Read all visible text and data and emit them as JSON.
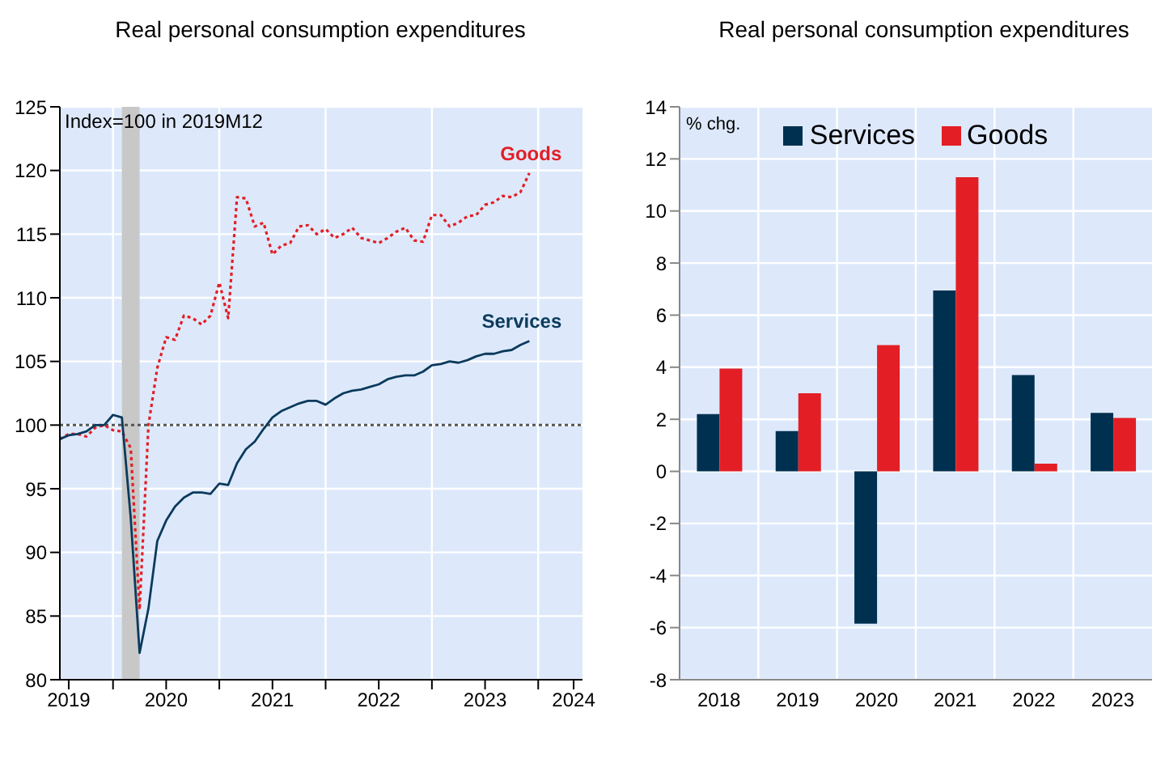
{
  "chart_data": [
    {
      "type": "line",
      "title": "Real personal consumption expenditures",
      "annotations": [
        "Index=100 in 2019M12"
      ],
      "x": [
        "2019-07",
        "2019-08",
        "2019-09",
        "2019-10",
        "2019-11",
        "2019-12",
        "2020-01",
        "2020-02",
        "2020-03",
        "2020-04",
        "2020-05",
        "2020-06",
        "2020-07",
        "2020-08",
        "2020-09",
        "2020-10",
        "2020-11",
        "2020-12",
        "2021-01",
        "2021-02",
        "2021-03",
        "2021-04",
        "2021-05",
        "2021-06",
        "2021-07",
        "2021-08",
        "2021-09",
        "2021-10",
        "2021-11",
        "2021-12",
        "2022-01",
        "2022-02",
        "2022-03",
        "2022-04",
        "2022-05",
        "2022-06",
        "2022-07",
        "2022-08",
        "2022-09",
        "2022-10",
        "2022-11",
        "2022-12",
        "2023-01",
        "2023-02",
        "2023-03",
        "2023-04",
        "2023-05",
        "2023-06",
        "2023-07",
        "2023-08",
        "2023-09",
        "2023-10",
        "2023-11",
        "2023-12"
      ],
      "series": [
        {
          "name": "Goods",
          "color": "#e31e25",
          "line_style": "dotted",
          "values": [
            98.9,
            99.3,
            99.3,
            99.1,
            99.8,
            100.0,
            99.6,
            99.5,
            98.2,
            85.5,
            100.0,
            104.5,
            106.9,
            106.7,
            108.6,
            108.4,
            107.9,
            108.6,
            111.2,
            108.4,
            117.9,
            117.8,
            115.6,
            115.9,
            113.4,
            114.1,
            114.3,
            115.6,
            115.7,
            115.0,
            115.4,
            114.7,
            115.0,
            115.5,
            114.7,
            114.5,
            114.3,
            114.7,
            115.2,
            115.5,
            114.5,
            114.4,
            116.5,
            116.5,
            115.6,
            115.9,
            116.4,
            116.5,
            117.3,
            117.5,
            118.0,
            117.9,
            118.3,
            119.8
          ]
        },
        {
          "name": "Services",
          "color": "#0b3a5c",
          "line_style": "solid",
          "values": [
            98.9,
            99.2,
            99.3,
            99.5,
            100.0,
            100.0,
            100.8,
            100.6,
            92.7,
            82.1,
            85.6,
            90.9,
            92.5,
            93.6,
            94.3,
            94.7,
            94.7,
            94.6,
            95.4,
            95.3,
            97.0,
            98.1,
            98.7,
            99.7,
            100.6,
            101.1,
            101.4,
            101.7,
            101.9,
            101.9,
            101.6,
            102.1,
            102.5,
            102.7,
            102.8,
            103.0,
            103.2,
            103.6,
            103.8,
            103.9,
            103.9,
            104.2,
            104.7,
            104.8,
            105.0,
            104.9,
            105.1,
            105.4,
            105.6,
            105.6,
            105.8,
            105.9,
            106.3,
            106.6
          ]
        }
      ],
      "xlim": [
        "2019-07",
        "2024-06"
      ],
      "xticks": [
        {
          "value": "2019-08",
          "label": "2019"
        },
        {
          "value": "2020-01",
          "label": null
        },
        {
          "value": "2020-07",
          "label": "2020"
        },
        {
          "value": "2021-01",
          "label": null
        },
        {
          "value": "2021-07",
          "label": "2021"
        },
        {
          "value": "2022-01",
          "label": null
        },
        {
          "value": "2022-07",
          "label": "2022"
        },
        {
          "value": "2023-01",
          "label": null
        },
        {
          "value": "2023-07",
          "label": "2023"
        },
        {
          "value": "2024-01",
          "label": null
        },
        {
          "value": "2024-05",
          "label": "2024"
        }
      ],
      "ylim": [
        80,
        125
      ],
      "yticks": [
        80,
        85,
        90,
        95,
        100,
        105,
        110,
        115,
        120,
        125
      ],
      "ref_lines": [
        {
          "axis": "y",
          "value": 100,
          "color": "#555555",
          "line_style": "dotted"
        }
      ],
      "bands": [
        {
          "axis": "x",
          "from": "2020-02",
          "to": "2020-04",
          "color": "#c8c8c8"
        }
      ],
      "grid": true,
      "legend": false
    },
    {
      "type": "bar",
      "title": "Real personal consumption expenditures",
      "ylabel": "% chg.",
      "categories": [
        "2018",
        "2019",
        "2020",
        "2021",
        "2022",
        "2023"
      ],
      "series": [
        {
          "name": "Services",
          "color": "#003050",
          "values": [
            2.2,
            1.55,
            -5.85,
            6.95,
            3.7,
            2.25
          ]
        },
        {
          "name": "Goods",
          "color": "#e31e25",
          "values": [
            3.95,
            3.0,
            4.85,
            11.3,
            0.3,
            2.05
          ]
        }
      ],
      "ylim": [
        -8,
        14
      ],
      "yticks": [
        -8,
        -6,
        -4,
        -2,
        0,
        2,
        4,
        6,
        8,
        10,
        12,
        14
      ],
      "grid": true,
      "legend": "top"
    }
  ]
}
